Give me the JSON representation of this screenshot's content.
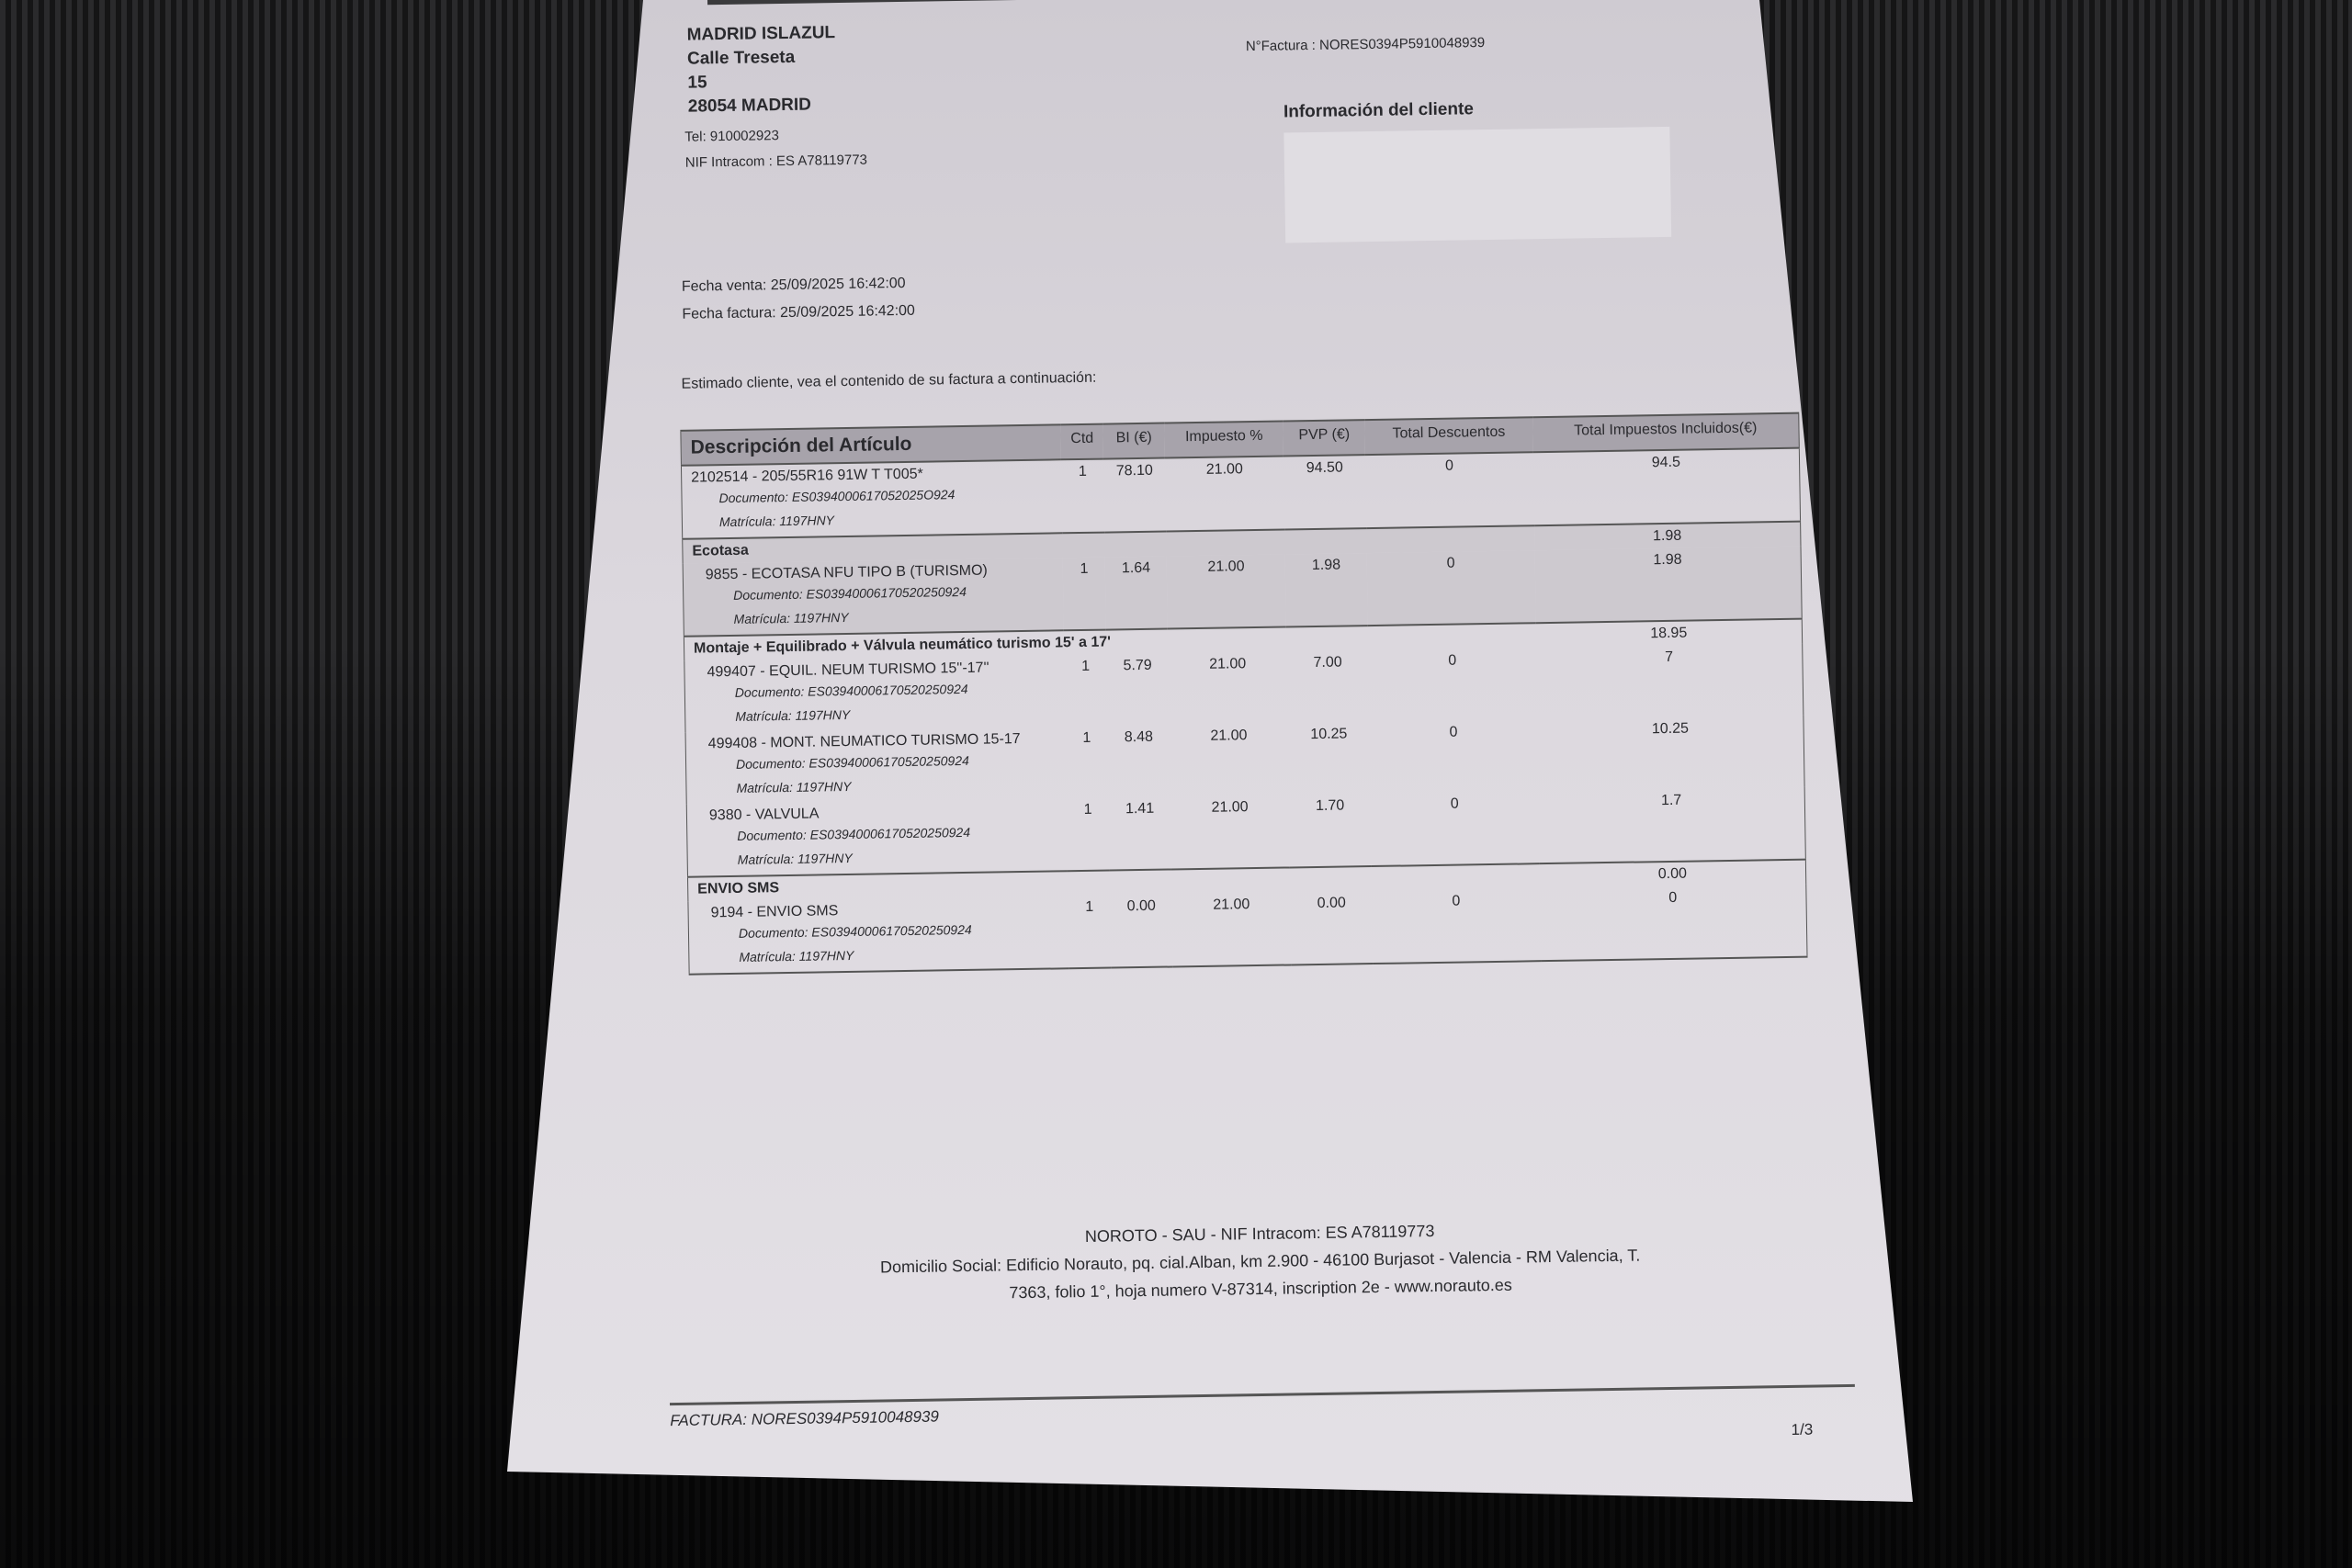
{
  "store": {
    "name": "MADRID ISLAZUL",
    "street": "Calle Treseta",
    "number": "15",
    "city": "28054 MADRID",
    "tel": "Tel: 910002923",
    "nif": "NIF Intracom : ES A78119773"
  },
  "invoice_number": "N°Factura : NORES0394P5910048939",
  "client_info_label": "Información del cliente",
  "dates": {
    "sale": "Fecha venta: 25/09/2025 16:42:00",
    "invoice": "Fecha factura: 25/09/2025 16:42:00"
  },
  "intro": "Estimado cliente, vea el contenido de su factura a continuación:",
  "table": {
    "headers": [
      "Descripción del Artículo",
      "Ctd",
      "BI (€)",
      "Impuesto %",
      "PVP (€)",
      "Total Descuentos",
      "Total Impuestos Incluidos(€)"
    ],
    "groups": [
      {
        "label": "",
        "total": "",
        "items": [
          {
            "desc": "2102514 - 205/55R16 91W T T005*",
            "qty": "1",
            "bi": "78.10",
            "tax": "21.00",
            "pvp": "94.50",
            "disc": "0",
            "total": "94.5",
            "doc": "Documento: ES0394000617052025O924",
            "mat": "Matrícula: 1197HNY"
          }
        ]
      },
      {
        "label": "Ecotasa",
        "total": "1.98",
        "items": [
          {
            "desc": "9855 - ECOTASA NFU TIPO B (TURISMO)",
            "qty": "1",
            "bi": "1.64",
            "tax": "21.00",
            "pvp": "1.98",
            "disc": "0",
            "total": "1.98",
            "doc": "Documento: ES03940006170520250924",
            "mat": "Matrícula: 1197HNY"
          }
        ]
      },
      {
        "label": "Montaje + Equilibrado + Válvula neumático turismo 15' a 17'",
        "total": "18.95",
        "items": [
          {
            "desc": "499407 - EQUIL. NEUM TURISMO 15''-17''",
            "qty": "1",
            "bi": "5.79",
            "tax": "21.00",
            "pvp": "7.00",
            "disc": "0",
            "total": "7",
            "doc": "Documento: ES03940006170520250924",
            "mat": "Matrícula: 1197HNY"
          },
          {
            "desc": "499408 - MONT. NEUMATICO TURISMO 15-17",
            "qty": "1",
            "bi": "8.48",
            "tax": "21.00",
            "pvp": "10.25",
            "disc": "0",
            "total": "10.25",
            "doc": "Documento: ES03940006170520250924",
            "mat": "Matrícula: 1197HNY"
          },
          {
            "desc": "9380 - VALVULA",
            "qty": "1",
            "bi": "1.41",
            "tax": "21.00",
            "pvp": "1.70",
            "disc": "0",
            "total": "1.7",
            "doc": "Documento: ES03940006170520250924",
            "mat": "Matrícula: 1197HNY"
          }
        ]
      },
      {
        "label": "ENVIO SMS",
        "total": "0.00",
        "items": [
          {
            "desc": "9194 - ENVIO SMS",
            "qty": "1",
            "bi": "0.00",
            "tax": "21.00",
            "pvp": "0.00",
            "disc": "0",
            "total": "0",
            "doc": "Documento: ES03940006170520250924",
            "mat": "Matrícula: 1197HNY"
          }
        ]
      }
    ]
  },
  "footer": {
    "company": "NOROTO  - SAU - NIF Intracom: ES A78119773",
    "address1": "Domicilio Social: Edificio Norauto, pq. cial.Alban, km 2.900 - 46100 Burjasot - Valencia - RM Valencia, T.",
    "address2": "7363, folio 1°, hoja numero V-87314, inscription 2e - www.norauto.es",
    "factura": "FACTURA: NORES0394P5910048939",
    "page": "1/3"
  }
}
